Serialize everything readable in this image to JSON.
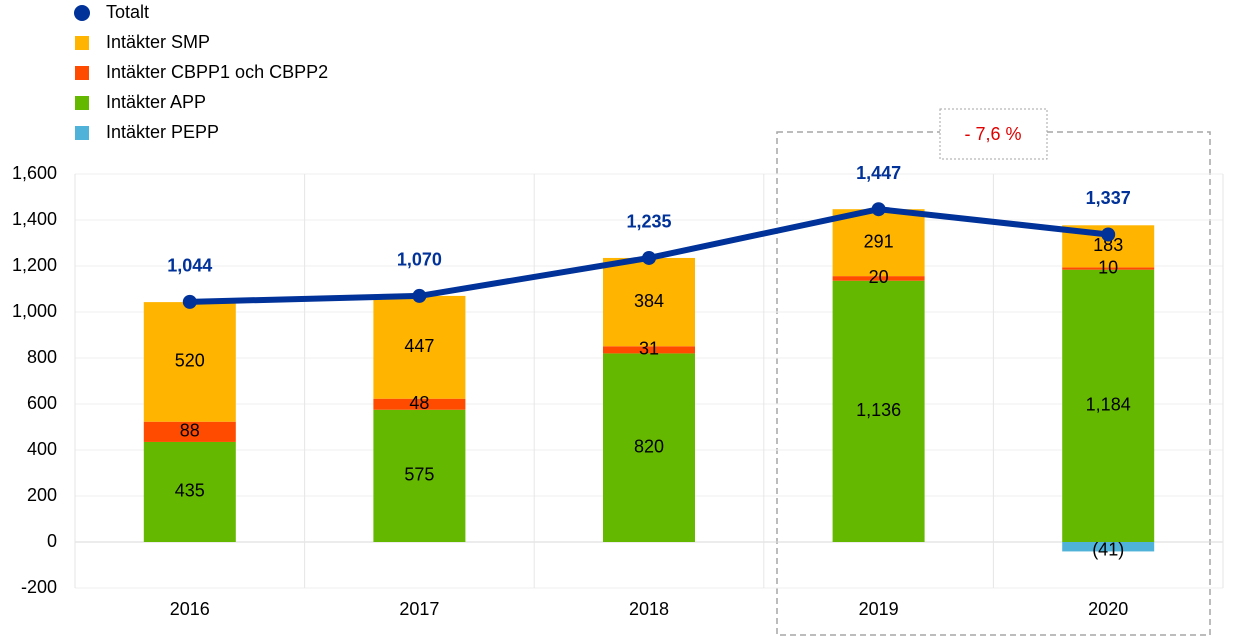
{
  "chart_data": {
    "type": "bar",
    "categories": [
      "2016",
      "2017",
      "2018",
      "2019",
      "2020"
    ],
    "series": [
      {
        "name": "Totalt",
        "type": "line",
        "color": "#003299",
        "values": [
          1044,
          1070,
          1235,
          1447,
          1337
        ],
        "value_labels": [
          "1,044",
          "1,070",
          "1,235",
          "1,447",
          "1,337"
        ]
      },
      {
        "name": "Intäkter SMP",
        "color": "#ffb400",
        "values": [
          520,
          447,
          384,
          291,
          183
        ]
      },
      {
        "name": "Intäkter CBPP1 och CBPP2",
        "color": "#ff4b00",
        "values": [
          88,
          48,
          31,
          20,
          10
        ]
      },
      {
        "name": "Intäkter APP",
        "color": "#65b800",
        "values": [
          435,
          575,
          820,
          1136,
          1184
        ],
        "value_labels": [
          null,
          null,
          null,
          "1,136",
          "1,184"
        ]
      },
      {
        "name": "Intäkter PEPP",
        "color": "#4fb3d9",
        "values": [
          null,
          null,
          null,
          null,
          -41
        ],
        "value_labels": [
          null,
          null,
          null,
          null,
          "(41)"
        ]
      }
    ],
    "ylim": [
      -200,
      1600
    ],
    "yticks": [
      {
        "value": -200,
        "label": "-200"
      },
      0,
      200,
      400,
      600,
      800,
      {
        "value": 1000,
        "label": "1,000"
      },
      {
        "value": 1200,
        "label": "1,200"
      },
      {
        "value": 1400,
        "label": "1,400"
      },
      {
        "value": 1600,
        "label": "1,600"
      }
    ],
    "grid": true,
    "annotation": "- 7,6 %"
  }
}
